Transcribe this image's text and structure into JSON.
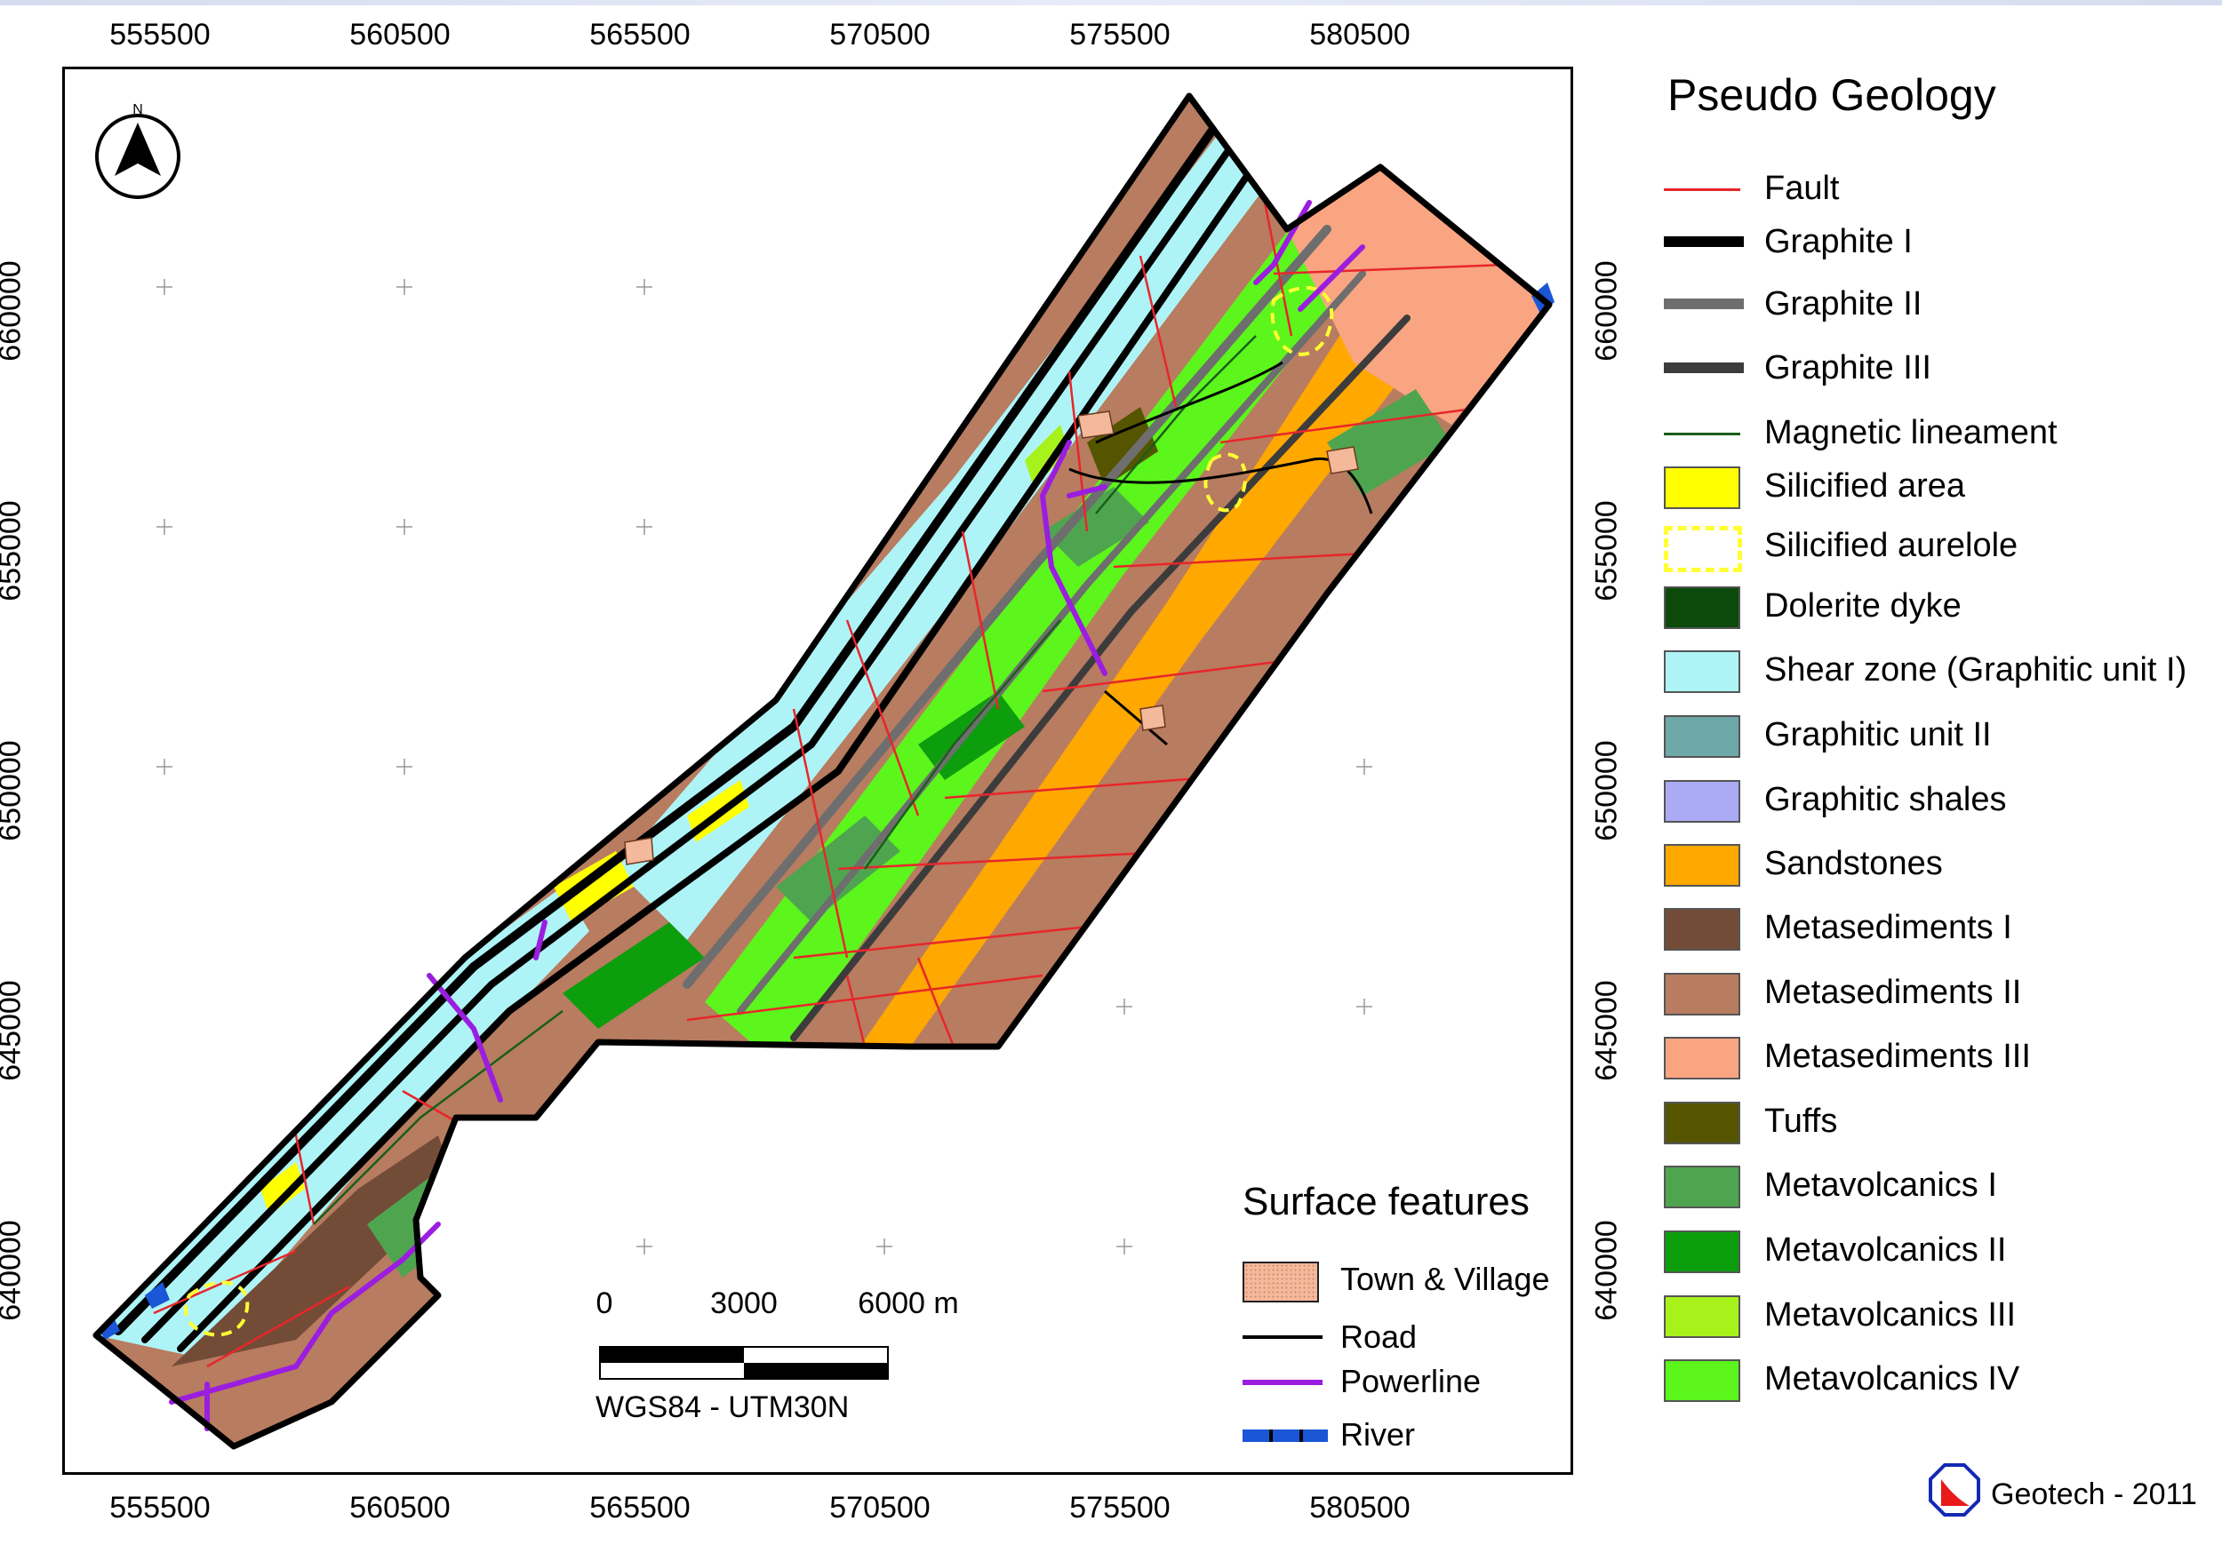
{
  "map": {
    "coordinate_system_label": "WGS84 - UTM30N",
    "x_ticks": [
      "555500",
      "560500",
      "565500",
      "570500",
      "575500",
      "580500"
    ],
    "y_ticks": [
      "660000",
      "655000",
      "650000",
      "645000",
      "640000"
    ],
    "north_arrow_letter": "N",
    "north_arrow_icon": "north-arrow-icon"
  },
  "legend": {
    "title": "Pseudo Geology",
    "items": [
      {
        "label": "Fault",
        "symbol": "line",
        "color": "#e8262a"
      },
      {
        "label": "Graphite I",
        "symbol": "thick-line",
        "color": "#000000"
      },
      {
        "label": "Graphite II",
        "symbol": "thick-line",
        "color": "#6e6e6e"
      },
      {
        "label": "Graphite III",
        "symbol": "thick-line",
        "color": "#3c3c3c"
      },
      {
        "label": "Magnetic lineament",
        "symbol": "line",
        "color": "#1a5e1a"
      },
      {
        "label": "Silicified area",
        "symbol": "fill",
        "color": "#ffff00"
      },
      {
        "label": "Silicified aurelole",
        "symbol": "dashed-outline",
        "color": "#ffff33"
      },
      {
        "label": "Dolerite dyke",
        "symbol": "fill",
        "color": "#0b4a0b"
      },
      {
        "label": "Shear zone (Graphitic unit I)",
        "symbol": "fill",
        "color": "#aef4f7"
      },
      {
        "label": "Graphitic unit II",
        "symbol": "fill",
        "color": "#6ea8a8"
      },
      {
        "label": "Graphitic shales",
        "symbol": "fill",
        "color": "#aaaaf5"
      },
      {
        "label": "Sandstones",
        "symbol": "fill",
        "color": "#ffa800"
      },
      {
        "label": "Metasediments I",
        "symbol": "fill",
        "color": "#734c38"
      },
      {
        "label": "Metasediments II",
        "symbol": "fill",
        "color": "#b87c60"
      },
      {
        "label": "Metasediments III",
        "symbol": "fill",
        "color": "#f9a582"
      },
      {
        "label": "Tuffs",
        "symbol": "fill",
        "color": "#555500"
      },
      {
        "label": "Metavolcanics I",
        "symbol": "fill",
        "color": "#4fa54f"
      },
      {
        "label": "Metavolcanics II",
        "symbol": "fill",
        "color": "#0c9e0c"
      },
      {
        "label": "Metavolcanics III",
        "symbol": "fill",
        "color": "#a8f21c"
      },
      {
        "label": "Metavolcanics IV",
        "symbol": "fill",
        "color": "#5cf51c"
      }
    ]
  },
  "surface_features": {
    "title": "Surface features",
    "items": [
      {
        "label": "Town & Village",
        "symbol": "fill",
        "color": "#f4b89a"
      },
      {
        "label": "Road",
        "symbol": "line",
        "color": "#000000"
      },
      {
        "label": "Powerline",
        "symbol": "line",
        "color": "#9b1de0"
      },
      {
        "label": "River",
        "symbol": "river",
        "color": "#1a56d6"
      }
    ]
  },
  "scalebar": {
    "labels": [
      "0",
      "3000",
      "6000 m"
    ]
  },
  "credit": {
    "text": "Geotech - 2011",
    "logo_icon": "geotech-logo-icon",
    "logo_colors": [
      "#1428b4",
      "#e81a1a"
    ]
  }
}
